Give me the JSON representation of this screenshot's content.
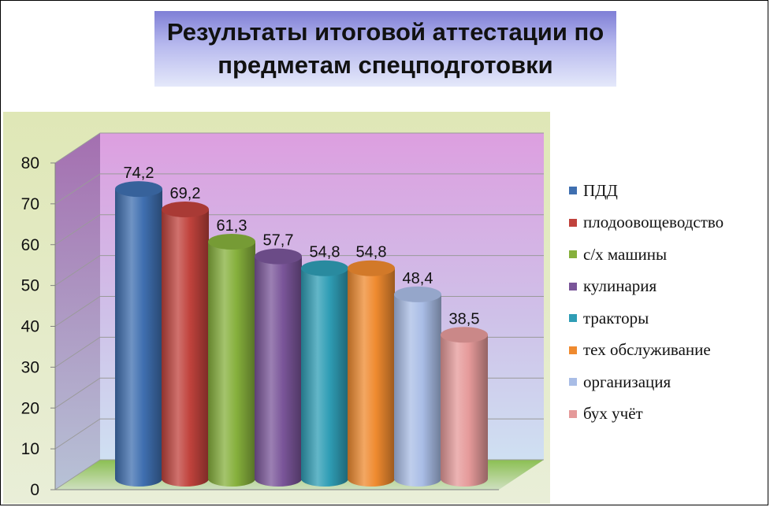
{
  "title": "Результаты итоговой аттестации по предметам спецподготовки",
  "chart_data": {
    "type": "bar",
    "title": "Результаты итоговой аттестации по предметам спецподготовки",
    "categories": [
      "ПДД",
      "плодоовощеводство",
      "с/х машины",
      "кулинария",
      "тракторы",
      "тех обслуживание",
      "организация",
      "бух учёт"
    ],
    "values": [
      74.2,
      69.2,
      61.3,
      57.7,
      54.8,
      54.8,
      48.4,
      38.5
    ],
    "data_labels": [
      "74,2",
      "69,2",
      "61,3",
      "57,7",
      "54,8",
      "54,8",
      "48,4",
      "38,5"
    ],
    "colors": [
      "#3f6fb0",
      "#c0423c",
      "#86b03c",
      "#7a5599",
      "#2f9db5",
      "#ef8a2f",
      "#a9bde6",
      "#e59a9a"
    ],
    "ylim": [
      0,
      80
    ],
    "yticks": [
      "0",
      "10",
      "20",
      "30",
      "40",
      "50",
      "60",
      "70",
      "80"
    ],
    "grid": true,
    "legend_position": "right",
    "style": "3d-cylinder"
  }
}
